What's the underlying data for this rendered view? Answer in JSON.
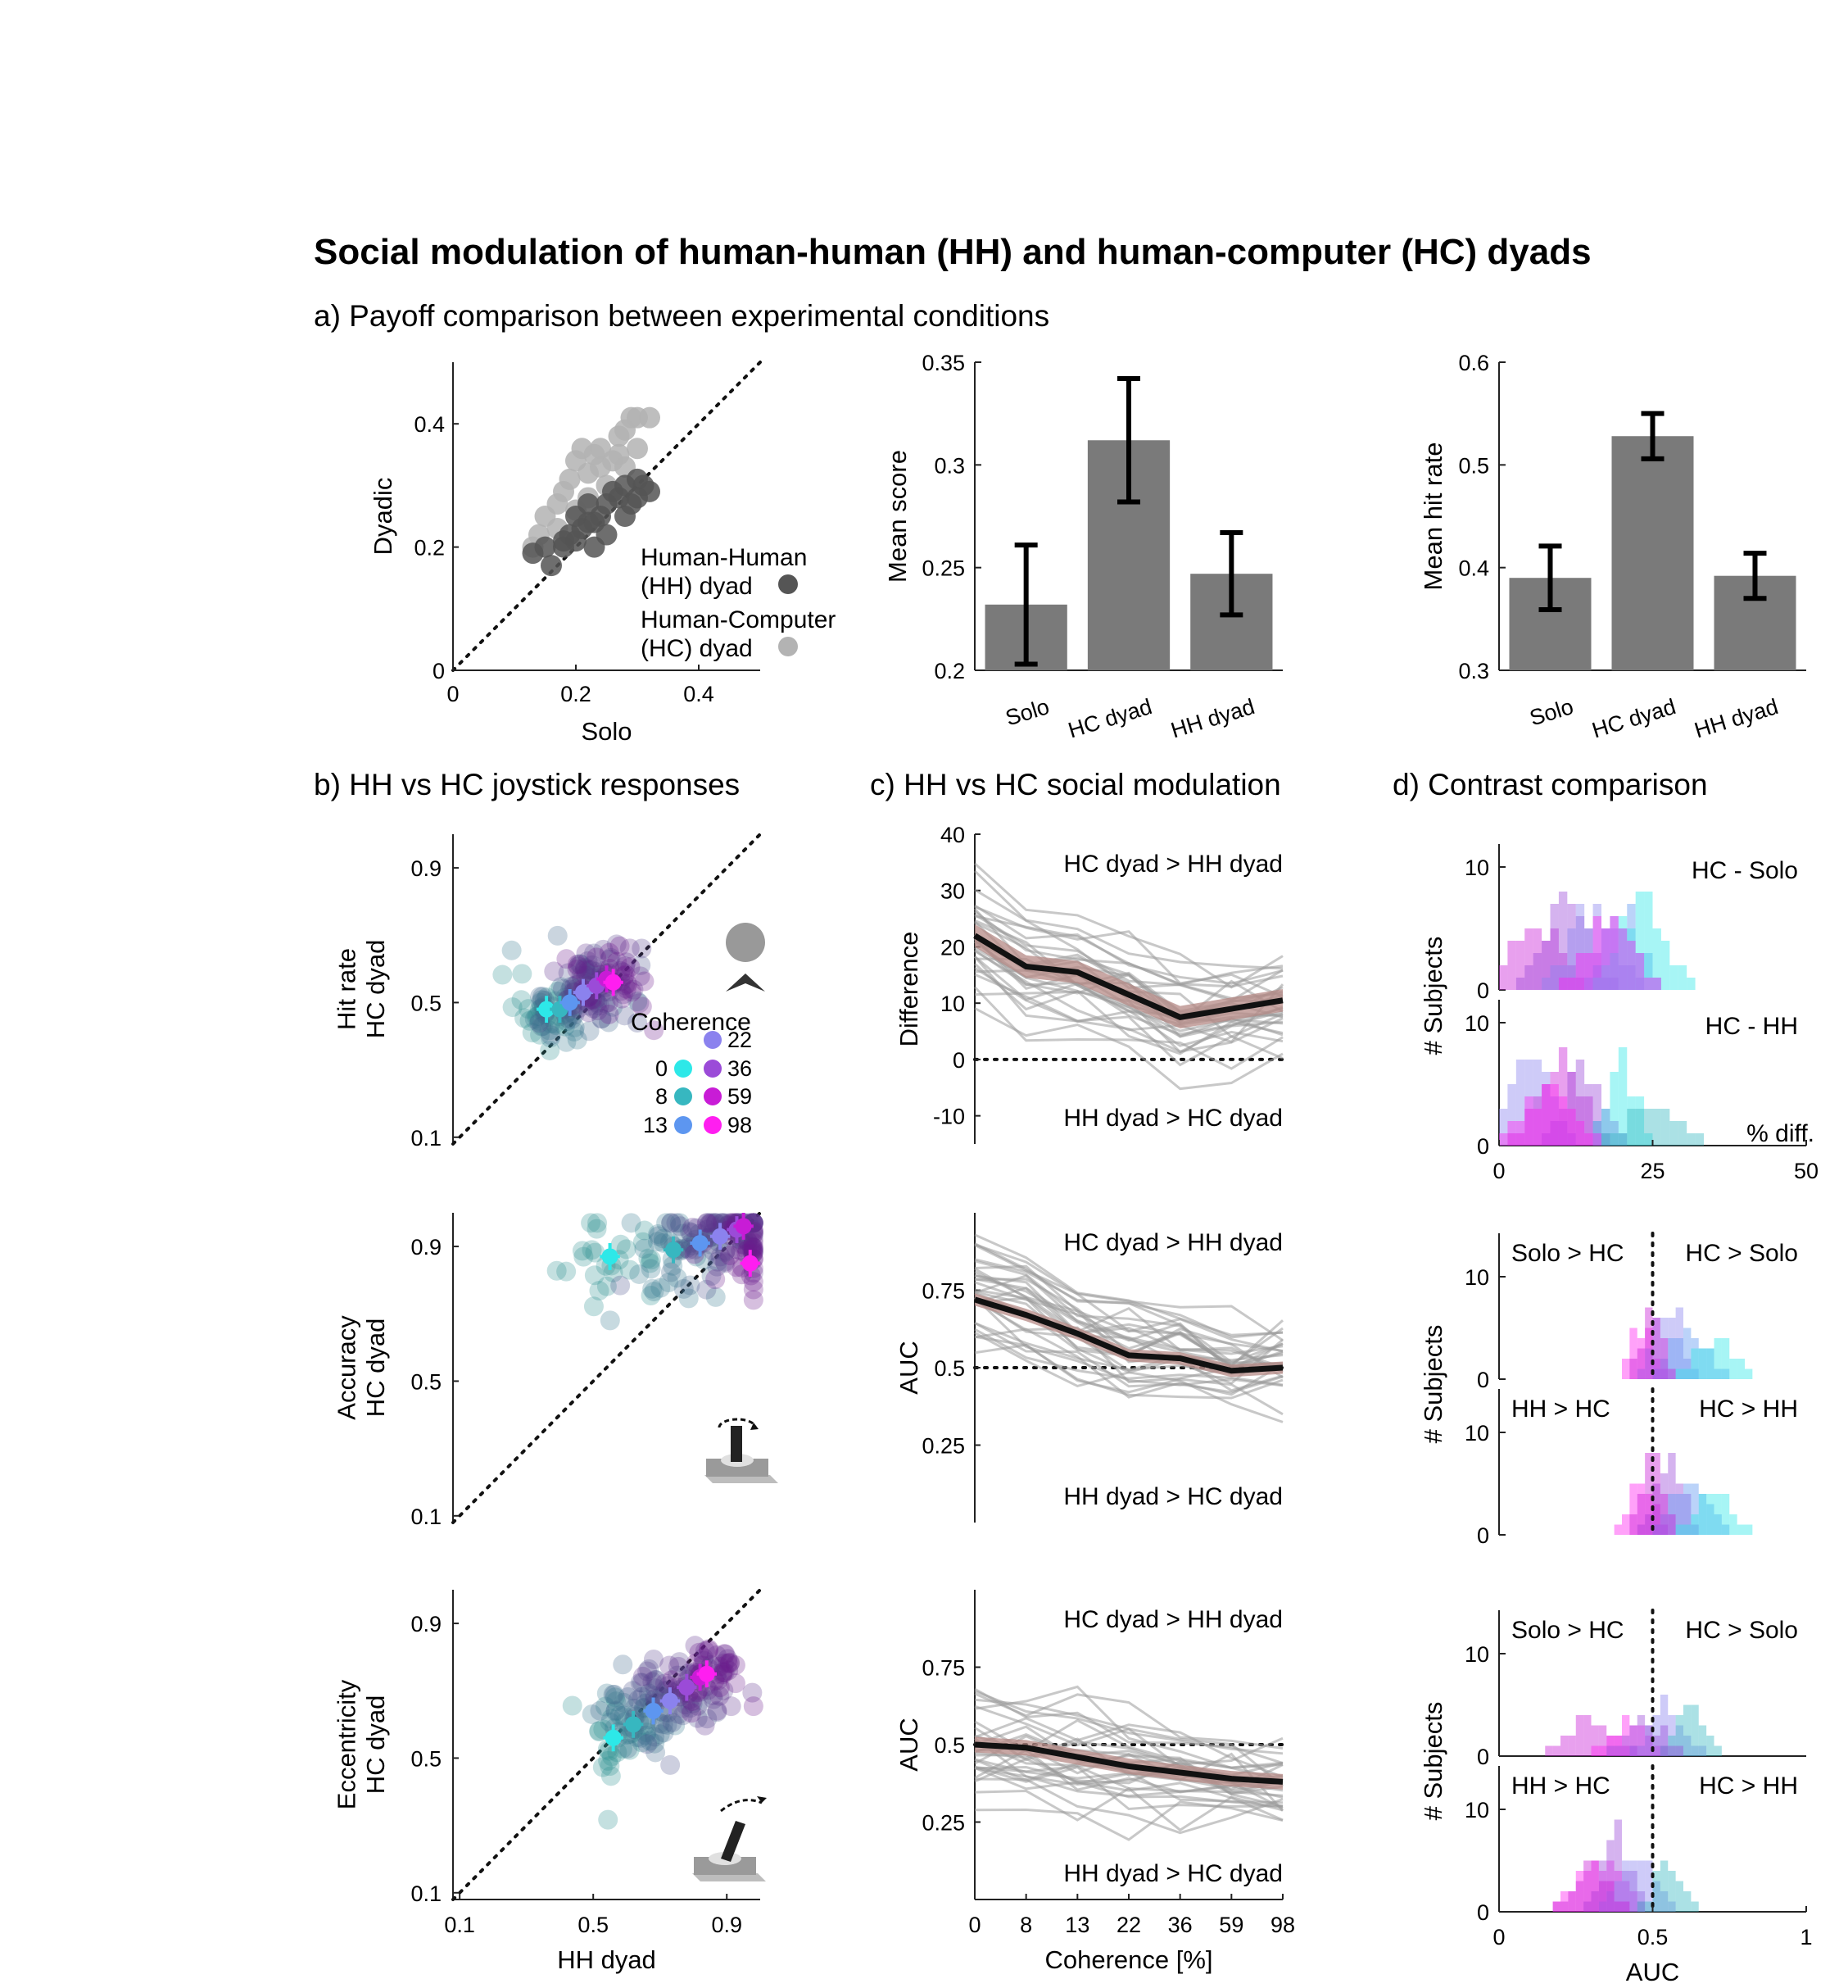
{
  "figure": {
    "title": "Social modulation of human-human (HH) and human-computer (HC) dyads",
    "section_a": "a) Payoff comparison between experimental conditions",
    "section_b": "b) HH vs HC joystick responses",
    "section_c": "c) HH vs HC social modulation",
    "section_d": "d) Contrast comparison"
  },
  "colors": {
    "hh": "#555555",
    "hc": "#b3b3b3",
    "bar": "#7a7a7a",
    "coherence": [
      "#2de8e8",
      "#37b7c0",
      "#5d96f0",
      "#8b82ee",
      "#9b4bd8",
      "#c81cd6",
      "#ff1ef0"
    ],
    "cloud_low": "#2a8e8e",
    "cloud_high": "#6a1a8c",
    "individual_line": "#9a9a9a",
    "mean_line": "#111111",
    "sem_band": "#b58a86"
  },
  "chart_data": [
    {
      "id": "a1",
      "type": "scatter",
      "xlabel": "Solo",
      "ylabel": "Dyadic",
      "xlim": [
        0,
        0.5
      ],
      "ylim": [
        0,
        0.5
      ],
      "xticks": [
        "0",
        "0.2",
        "0.4"
      ],
      "yticks": [
        "0",
        "0.2",
        "0.4"
      ],
      "legend": [
        {
          "line1": "Human-Human",
          "line2": "(HH) dyad"
        },
        {
          "line1": "Human-Computer",
          "line2": "(HC) dyad"
        }
      ],
      "series": [
        {
          "name": "Human-Human (HH) dyad",
          "color": "#555555",
          "points": [
            [
              0.13,
              0.19
            ],
            [
              0.15,
              0.2
            ],
            [
              0.16,
              0.17
            ],
            [
              0.18,
              0.2
            ],
            [
              0.19,
              0.22
            ],
            [
              0.2,
              0.21
            ],
            [
              0.21,
              0.23
            ],
            [
              0.22,
              0.24
            ],
            [
              0.2,
              0.25
            ],
            [
              0.23,
              0.2
            ],
            [
              0.24,
              0.25
            ],
            [
              0.25,
              0.27
            ],
            [
              0.26,
              0.29
            ],
            [
              0.27,
              0.28
            ],
            [
              0.28,
              0.3
            ],
            [
              0.29,
              0.27
            ],
            [
              0.3,
              0.31
            ],
            [
              0.31,
              0.3
            ],
            [
              0.32,
              0.29
            ],
            [
              0.25,
              0.22
            ],
            [
              0.23,
              0.24
            ],
            [
              0.18,
              0.21
            ],
            [
              0.28,
              0.25
            ],
            [
              0.3,
              0.28
            ],
            [
              0.22,
              0.27
            ]
          ]
        },
        {
          "name": "Human-Computer (HC) dyad",
          "color": "#b3b3b3",
          "points": [
            [
              0.13,
              0.2
            ],
            [
              0.14,
              0.22
            ],
            [
              0.15,
              0.25
            ],
            [
              0.17,
              0.27
            ],
            [
              0.18,
              0.29
            ],
            [
              0.19,
              0.31
            ],
            [
              0.2,
              0.34
            ],
            [
              0.21,
              0.36
            ],
            [
              0.22,
              0.32
            ],
            [
              0.23,
              0.35
            ],
            [
              0.24,
              0.33
            ],
            [
              0.25,
              0.3
            ],
            [
              0.26,
              0.34
            ],
            [
              0.27,
              0.38
            ],
            [
              0.28,
              0.39
            ],
            [
              0.29,
              0.41
            ],
            [
              0.3,
              0.41
            ],
            [
              0.32,
              0.41
            ],
            [
              0.27,
              0.35
            ],
            [
              0.22,
              0.28
            ],
            [
              0.17,
              0.23
            ],
            [
              0.2,
              0.26
            ],
            [
              0.24,
              0.36
            ],
            [
              0.3,
              0.36
            ],
            [
              0.28,
              0.33
            ]
          ]
        }
      ]
    },
    {
      "id": "a2",
      "type": "bar",
      "ylabel": "Mean score",
      "categories": [
        "Solo",
        "HC dyad",
        "HH dyad"
      ],
      "values": [
        0.232,
        0.312,
        0.247
      ],
      "errors": [
        0.029,
        0.03,
        0.02
      ],
      "ylim": [
        0.2,
        0.35
      ],
      "yticks": [
        "0.2",
        "0.25",
        "0.3",
        "0.35"
      ]
    },
    {
      "id": "a3",
      "type": "bar",
      "ylabel": "Mean hit rate",
      "categories": [
        "Solo",
        "HC dyad",
        "HH dyad"
      ],
      "values": [
        0.39,
        0.528,
        0.392
      ],
      "errors": [
        0.031,
        0.022,
        0.022
      ],
      "ylim": [
        0.3,
        0.6
      ],
      "yticks": [
        "0.3",
        "0.4",
        "0.5",
        "0.6"
      ]
    },
    {
      "id": "b1",
      "type": "scatter",
      "ylabel_line1": "Hit rate",
      "ylabel_line2": "HC dyad",
      "yticks": [
        "0.1",
        "0.5",
        "0.9"
      ],
      "legend_title": "Coherence",
      "coherence_levels": [
        "0",
        "8",
        "13",
        "22",
        "36",
        "59",
        "98"
      ],
      "means": [
        [
          0.36,
          0.48
        ],
        [
          0.4,
          0.48
        ],
        [
          0.43,
          0.5
        ],
        [
          0.47,
          0.53
        ],
        [
          0.51,
          0.55
        ],
        [
          0.54,
          0.57
        ],
        [
          0.56,
          0.56
        ]
      ]
    },
    {
      "id": "b2",
      "type": "scatter",
      "ylabel_line1": "Accuracy",
      "ylabel_line2": "HC dyad",
      "yticks": [
        "0.1",
        "0.5",
        "0.9"
      ],
      "means": [
        [
          0.55,
          0.87
        ],
        [
          0.74,
          0.89
        ],
        [
          0.82,
          0.91
        ],
        [
          0.88,
          0.93
        ],
        [
          0.93,
          0.95
        ],
        [
          0.95,
          0.96
        ],
        [
          0.97,
          0.85
        ]
      ]
    },
    {
      "id": "b3",
      "type": "scatter",
      "ylabel_line1": "Eccentricity",
      "ylabel_line2": "HC dyad",
      "xlabel": "HH dyad",
      "xticks": [
        "0.1",
        "0.5",
        "0.9"
      ],
      "yticks": [
        "0.1",
        "0.5",
        "0.9"
      ],
      "means": [
        [
          0.56,
          0.56
        ],
        [
          0.62,
          0.6
        ],
        [
          0.68,
          0.64
        ],
        [
          0.73,
          0.67
        ],
        [
          0.78,
          0.71
        ],
        [
          0.82,
          0.74
        ],
        [
          0.84,
          0.75
        ]
      ]
    },
    {
      "id": "c1",
      "type": "line",
      "ylabel": "Difference",
      "x": [
        "0",
        "8",
        "13",
        "22",
        "36",
        "59",
        "98"
      ],
      "ylim": [
        -15,
        40
      ],
      "yticks": [
        "-10",
        "0",
        "10",
        "20",
        "30",
        "40"
      ],
      "mean": [
        22,
        16.5,
        15.5,
        11.5,
        7.5,
        9,
        10.5
      ],
      "sem": 2,
      "annotation_top": "HC dyad > HH dyad",
      "annotation_bottom": "HH dyad > HC dyad"
    },
    {
      "id": "c2",
      "type": "line",
      "ylabel": "AUC",
      "x": [
        "0",
        "8",
        "13",
        "22",
        "36",
        "59",
        "98"
      ],
      "ylim": [
        0,
        1
      ],
      "yticks": [
        "0.25",
        "0.5",
        "0.75"
      ],
      "mean": [
        0.72,
        0.67,
        0.61,
        0.54,
        0.53,
        0.49,
        0.5
      ],
      "sem": 0.02,
      "annotation_top": "HC dyad > HH dyad",
      "annotation_bottom": "HH dyad > HC dyad"
    },
    {
      "id": "c3",
      "type": "line",
      "ylabel": "AUC",
      "xlabel": "Coherence [%]",
      "x": [
        "0",
        "8",
        "13",
        "22",
        "36",
        "59",
        "98"
      ],
      "ylim": [
        0,
        1
      ],
      "yticks": [
        "0.25",
        "0.5",
        "0.75"
      ],
      "mean": [
        0.5,
        0.49,
        0.46,
        0.43,
        0.41,
        0.39,
        0.38
      ],
      "sem": 0.025,
      "annotation_top": "HC dyad > HH dyad",
      "annotation_bottom": "HH dyad > HC dyad"
    },
    {
      "id": "d1",
      "type": "bar",
      "ylabel": "# Subjects",
      "xlabel": "% diff.",
      "xticks": [
        "0",
        "25",
        "50"
      ],
      "panels": [
        {
          "label": "HC - Solo",
          "yticks": [
            "0",
            "10"
          ]
        },
        {
          "label": "HC - HH",
          "yticks": [
            "0",
            "10"
          ]
        }
      ]
    },
    {
      "id": "d2",
      "type": "bar",
      "ylabel": "# Subjects",
      "panels": [
        {
          "label_left": "Solo > HC",
          "label_right": "HC > Solo",
          "yticks": [
            "0",
            "10"
          ]
        },
        {
          "label_left": "HH > HC",
          "label_right": "HC > HH",
          "yticks": [
            "0",
            "10"
          ]
        }
      ]
    },
    {
      "id": "d3",
      "type": "bar",
      "ylabel": "# Subjects",
      "xlabel": "AUC",
      "xticks": [
        "0",
        "0.5",
        "1"
      ],
      "panels": [
        {
          "label_left": "Solo > HC",
          "label_right": "HC > Solo",
          "yticks": [
            "0",
            "10"
          ]
        },
        {
          "label_left": "HH > HC",
          "label_right": "HC > HH",
          "yticks": [
            "0",
            "10"
          ]
        }
      ]
    }
  ]
}
